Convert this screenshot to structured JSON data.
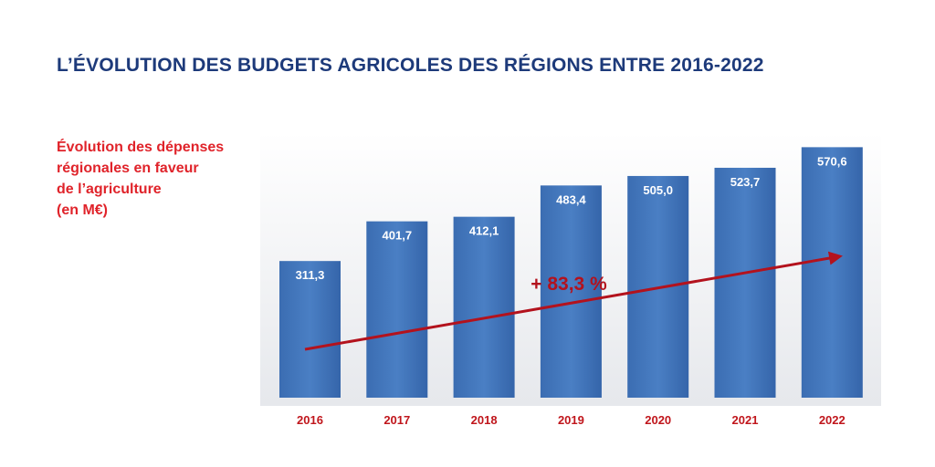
{
  "page": {
    "title": "L’ÉVOLUTION DES BUDGETS AGRICOLES DES RÉGIONS ENTRE 2016-2022",
    "caption_lines": [
      "Évolution des dépenses",
      "régionales en faveur",
      "de l’agriculture",
      "(en M€)"
    ]
  },
  "colors": {
    "title": "#1d3a7a",
    "caption": "#e0232a",
    "bar": "#3f72b8",
    "bar_label": "#ffffff",
    "axis_label": "#c0161c",
    "arrow": "#b3121d"
  },
  "chart_data": {
    "type": "bar",
    "categories": [
      "2016",
      "2017",
      "2018",
      "2019",
      "2020",
      "2021",
      "2022"
    ],
    "values": [
      311.3,
      401.7,
      412.1,
      483.4,
      505.0,
      523.7,
      570.6
    ],
    "value_labels": [
      "311,3",
      "401,7",
      "412,1",
      "483,4",
      "505,0",
      "523,7",
      "570,6"
    ],
    "annotation": "+ 83,3 %",
    "trend_arrow": true,
    "title": "",
    "xlabel": "",
    "ylabel": "",
    "grid": false,
    "legend": "none"
  }
}
